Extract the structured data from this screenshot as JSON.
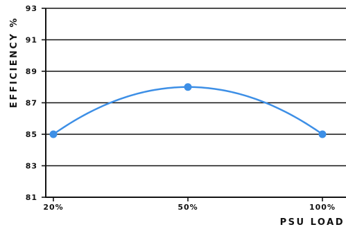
{
  "chart_data": {
    "type": "line",
    "title": "",
    "xlabel": "PSU LOAD",
    "ylabel": "EFFICIENCY %",
    "categories": [
      "20%",
      "50%",
      "100%"
    ],
    "series": [
      {
        "values": [
          85,
          88,
          85
        ],
        "color": "#3d8fe6",
        "smooth": true
      }
    ],
    "ylim": [
      81,
      93
    ],
    "yticks": [
      81,
      83,
      85,
      87,
      89,
      91,
      93
    ],
    "grid": "horizontal",
    "legend": "none"
  }
}
